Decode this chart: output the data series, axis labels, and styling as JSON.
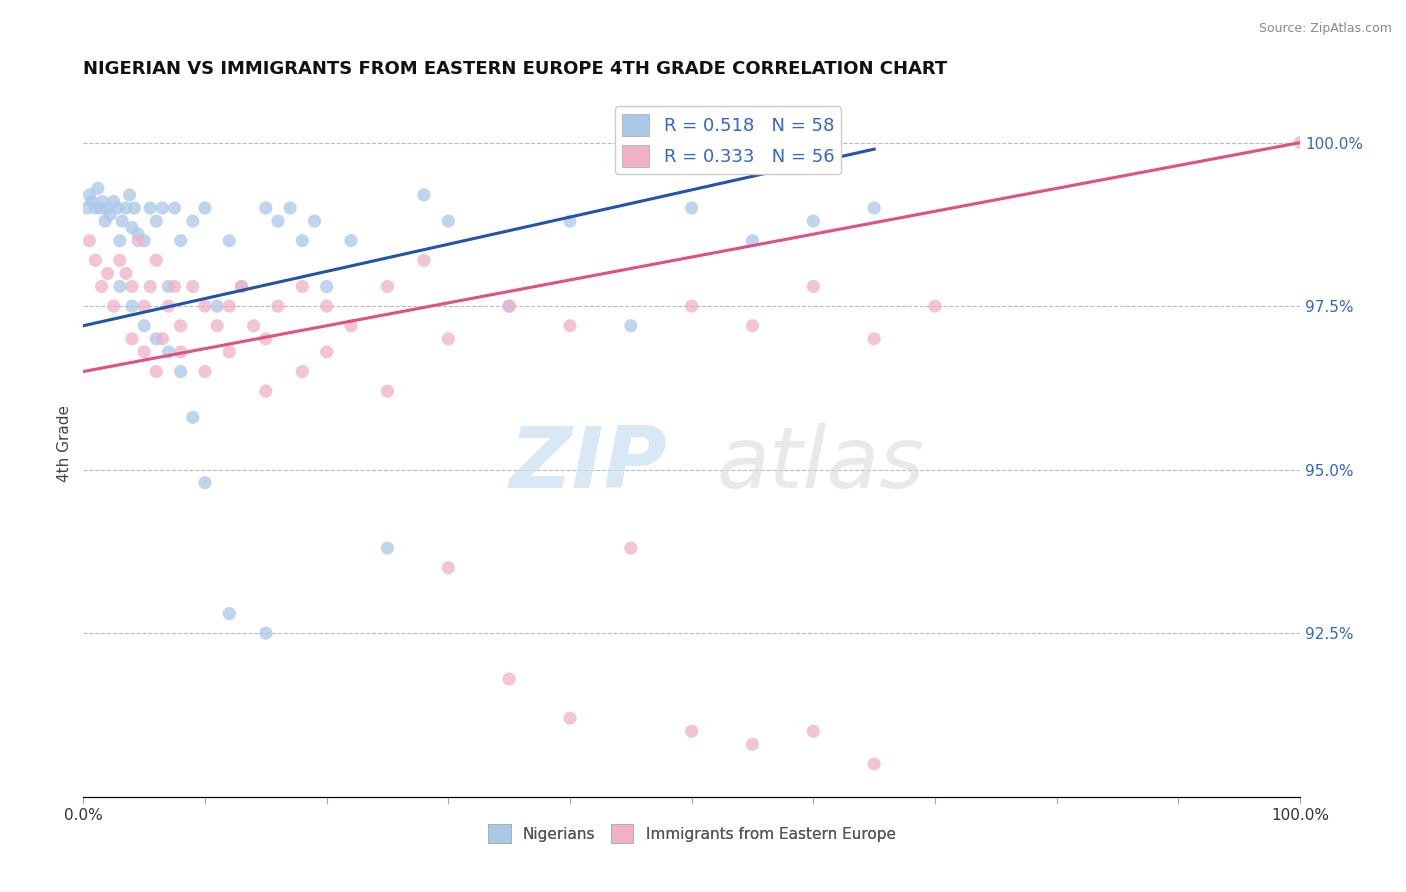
{
  "title": "NIGERIAN VS IMMIGRANTS FROM EASTERN EUROPE 4TH GRADE CORRELATION CHART",
  "source": "Source: ZipAtlas.com",
  "ylabel": "4th Grade",
  "series": [
    {
      "label": "Nigerians",
      "color": "#aac8e8",
      "line_color": "#2255aa",
      "R": 0.518,
      "N": 58,
      "x": [
        0.3,
        0.5,
        0.7,
        1.0,
        1.2,
        1.4,
        1.6,
        1.8,
        2.0,
        2.2,
        2.5,
        2.8,
        3.0,
        3.2,
        3.5,
        3.8,
        4.0,
        4.2,
        4.5,
        5.0,
        5.5,
        6.0,
        6.5,
        7.0,
        7.5,
        8.0,
        9.0,
        10.0,
        11.0,
        12.0,
        13.0,
        15.0,
        16.0,
        17.0,
        18.0,
        19.0,
        20.0,
        22.0,
        25.0,
        28.0,
        30.0,
        35.0,
        40.0,
        45.0,
        50.0,
        55.0,
        60.0,
        65.0,
        3.0,
        4.0,
        5.0,
        6.0,
        7.0,
        8.0,
        9.0,
        10.0,
        12.0,
        15.0
      ],
      "y": [
        99.0,
        99.2,
        99.1,
        99.0,
        99.3,
        99.0,
        99.1,
        98.8,
        99.0,
        98.9,
        99.1,
        99.0,
        98.5,
        98.8,
        99.0,
        99.2,
        98.7,
        99.0,
        98.6,
        98.5,
        99.0,
        98.8,
        99.0,
        97.8,
        99.0,
        98.5,
        98.8,
        99.0,
        97.5,
        98.5,
        97.8,
        99.0,
        98.8,
        99.0,
        98.5,
        98.8,
        97.8,
        98.5,
        93.8,
        99.2,
        98.8,
        97.5,
        98.8,
        97.2,
        99.0,
        98.5,
        98.8,
        99.0,
        97.8,
        97.5,
        97.2,
        97.0,
        96.8,
        96.5,
        95.8,
        94.8,
        92.8,
        92.5
      ],
      "trend_x": [
        0,
        65
      ],
      "trend_y": [
        97.2,
        99.9
      ]
    },
    {
      "label": "Immigrants from Eastern Europe",
      "color": "#f0b0c8",
      "line_color": "#e05080",
      "R": 0.333,
      "N": 56,
      "x": [
        0.5,
        1.0,
        1.5,
        2.0,
        2.5,
        3.0,
        3.5,
        4.0,
        4.5,
        5.0,
        5.5,
        6.0,
        6.5,
        7.0,
        7.5,
        8.0,
        9.0,
        10.0,
        11.0,
        12.0,
        13.0,
        14.0,
        15.0,
        16.0,
        18.0,
        20.0,
        22.0,
        25.0,
        28.0,
        30.0,
        35.0,
        40.0,
        45.0,
        50.0,
        55.0,
        60.0,
        65.0,
        70.0,
        4.0,
        5.0,
        6.0,
        8.0,
        10.0,
        12.0,
        15.0,
        18.0,
        20.0,
        25.0,
        30.0,
        35.0,
        40.0,
        50.0,
        55.0,
        60.0,
        65.0,
        100.0
      ],
      "y": [
        98.5,
        98.2,
        97.8,
        98.0,
        97.5,
        98.2,
        98.0,
        97.8,
        98.5,
        97.5,
        97.8,
        98.2,
        97.0,
        97.5,
        97.8,
        97.2,
        97.8,
        97.5,
        97.2,
        97.5,
        97.8,
        97.2,
        97.0,
        97.5,
        97.8,
        97.5,
        97.2,
        97.8,
        98.2,
        97.0,
        97.5,
        97.2,
        93.8,
        97.5,
        97.2,
        97.8,
        97.0,
        97.5,
        97.0,
        96.8,
        96.5,
        96.8,
        96.5,
        96.8,
        96.2,
        96.5,
        96.8,
        96.2,
        93.5,
        91.8,
        91.2,
        91.0,
        90.8,
        91.0,
        90.5,
        100.0
      ],
      "trend_x": [
        0,
        100
      ],
      "trend_y": [
        96.5,
        100.0
      ]
    }
  ],
  "xlim": [
    0,
    100
  ],
  "ylim": [
    90.0,
    100.8
  ],
  "yticks_right": [
    92.5,
    95.0,
    97.5,
    100.0
  ],
  "ytick_labels_right": [
    "92.5%",
    "95.0%",
    "97.5%",
    "100.0%"
  ],
  "watermark_zip": "ZIP",
  "watermark_atlas": "atlas",
  "legend_R_color": "#3366cc",
  "bg_color": "#ffffff",
  "grid_color": "#bbbbbb"
}
